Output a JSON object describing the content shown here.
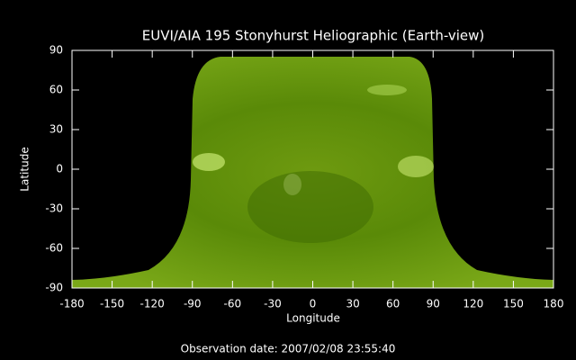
{
  "chart_data": {
    "type": "image",
    "title": "EUVI/AIA 195 Stonyhurst Heliographic (Earth-view)",
    "x_label": "Longitude",
    "y_label": "Latitude",
    "annotation": "Observation date: 2007/02/08 23:55:40",
    "xlim": [
      -180,
      180
    ],
    "xticks": [
      -180,
      -150,
      -120,
      -90,
      -60,
      -30,
      0,
      30,
      60,
      90,
      120,
      150,
      180
    ],
    "ylim": [
      -90,
      90
    ],
    "yticks": [
      -90,
      -60,
      -30,
      0,
      30,
      60,
      90
    ]
  }
}
